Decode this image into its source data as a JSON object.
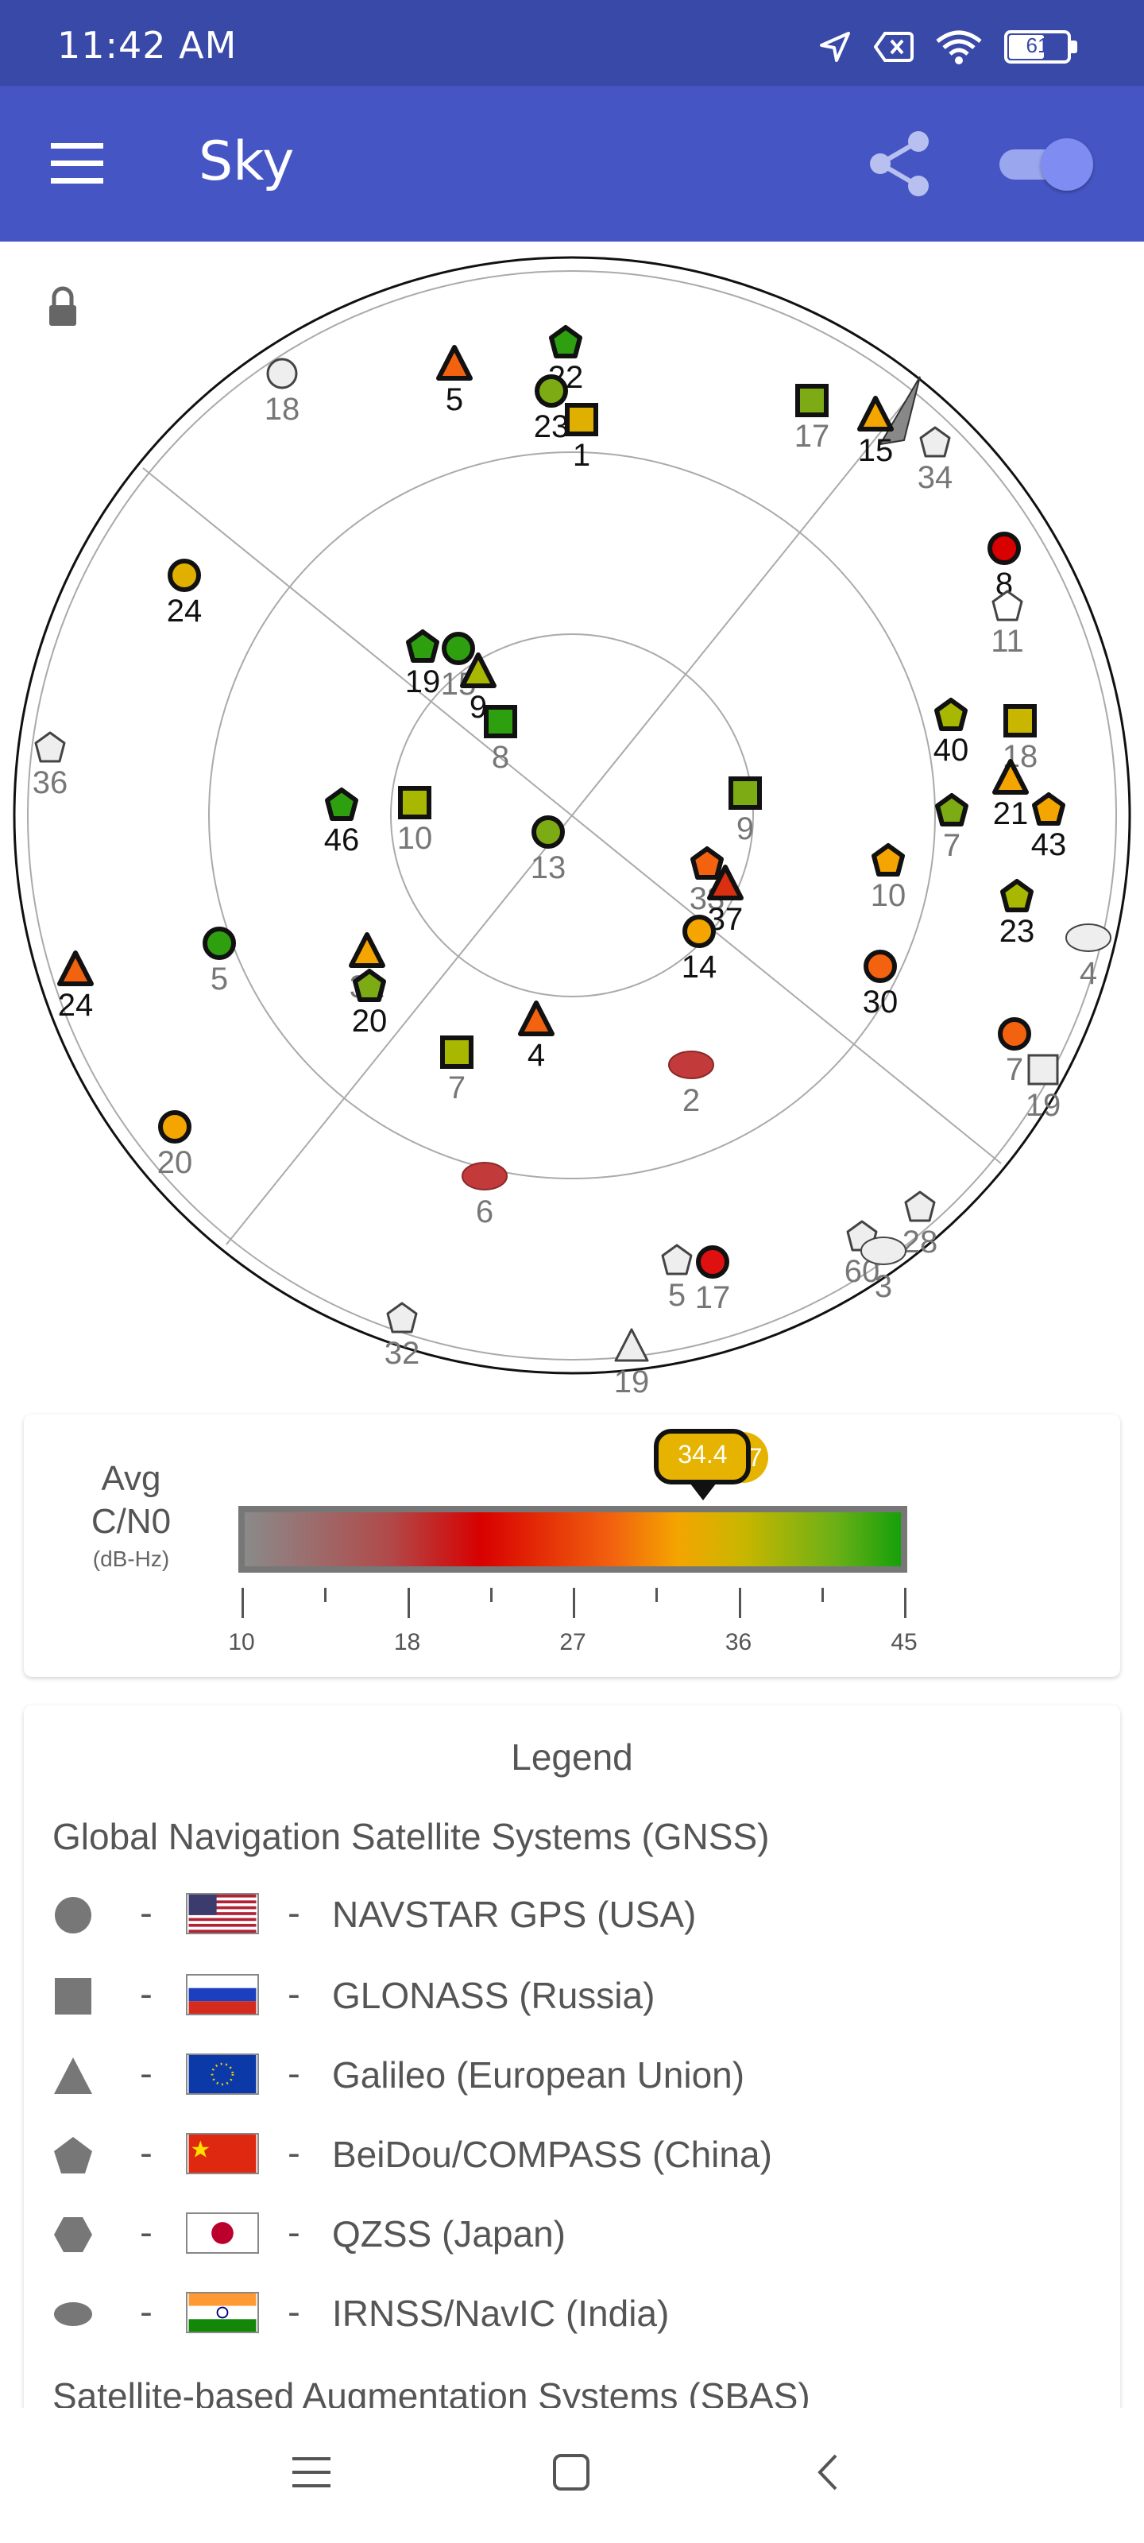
{
  "status_bar": {
    "time": "11:42 AM",
    "battery": "61"
  },
  "app_bar": {
    "title": "Sky",
    "icons": [
      "menu-icon",
      "share-icon",
      "toggle-switch"
    ]
  },
  "sky_plot": {
    "lock_icon": "lock-icon",
    "satellites": [
      {
        "label": "18",
        "shape": "circle",
        "fill": "#eeeeee"
      },
      {
        "label": "5",
        "shape": "triangle",
        "fill": "#f2620f"
      },
      {
        "label": "22",
        "shape": "pentagon",
        "fill": "#2ea010"
      },
      {
        "label": "23",
        "shape": "circle",
        "fill": "#7dab13"
      },
      {
        "label": "1",
        "shape": "square",
        "fill": "#e0b000"
      },
      {
        "label": "17",
        "shape": "square",
        "fill": "#7dab13"
      },
      {
        "label": "15",
        "shape": "triangle",
        "fill": "#f4a500"
      },
      {
        "label": "34",
        "shape": "pentagon",
        "fill": "#eeeeee"
      },
      {
        "label": "8",
        "shape": "circle",
        "fill": "#d80000"
      },
      {
        "label": "11",
        "shape": "pentagon",
        "fill": "#ffffff"
      },
      {
        "label": "24",
        "shape": "circle",
        "fill": "#e0b000"
      },
      {
        "label": "19",
        "shape": "pentagon",
        "fill": "#2ea010"
      },
      {
        "label": "15",
        "shape": "circle",
        "fill": "#2ea010"
      },
      {
        "label": "9",
        "shape": "triangle",
        "fill": "#a8b800"
      },
      {
        "label": "8",
        "shape": "square",
        "fill": "#2ea010"
      },
      {
        "label": "40",
        "shape": "pentagon",
        "fill": "#a8b800"
      },
      {
        "label": "18",
        "shape": "square",
        "fill": "#c9b600"
      },
      {
        "label": "36",
        "shape": "pentagon",
        "fill": "#eeeeee"
      },
      {
        "label": "46",
        "shape": "pentagon",
        "fill": "#2ea010"
      },
      {
        "label": "10",
        "shape": "square",
        "fill": "#a8b800"
      },
      {
        "label": "13",
        "shape": "circle",
        "fill": "#7dab13"
      },
      {
        "label": "9",
        "shape": "square",
        "fill": "#7dab13"
      },
      {
        "label": "21",
        "shape": "triangle",
        "fill": "#f4a500"
      },
      {
        "label": "7",
        "shape": "pentagon",
        "fill": "#7dab13"
      },
      {
        "label": "43",
        "shape": "pentagon",
        "fill": "#f4a500"
      },
      {
        "label": "10",
        "shape": "pentagon",
        "fill": "#f4a500"
      },
      {
        "label": "33",
        "shape": "pentagon",
        "fill": "#f2620f"
      },
      {
        "label": "37",
        "shape": "triangle",
        "fill": "#d83010"
      },
      {
        "label": "14",
        "shape": "circle",
        "fill": "#f4a500"
      },
      {
        "label": "23",
        "shape": "pentagon",
        "fill": "#a8b800"
      },
      {
        "label": "4",
        "shape": "oval",
        "fill": "#eeeeee"
      },
      {
        "label": "24",
        "shape": "triangle",
        "fill": "#f2620f"
      },
      {
        "label": "5",
        "shape": "circle",
        "fill": "#2ea010"
      },
      {
        "label": "31",
        "shape": "triangle",
        "fill": "#f4a500"
      },
      {
        "label": "20",
        "shape": "pentagon",
        "fill": "#7dab13"
      },
      {
        "label": "30",
        "shape": "circle",
        "fill": "#f2620f"
      },
      {
        "label": "7",
        "shape": "circle",
        "fill": "#f2620f"
      },
      {
        "label": "19",
        "shape": "square",
        "fill": "#eeeeee"
      },
      {
        "label": "4",
        "shape": "triangle",
        "fill": "#f2620f"
      },
      {
        "label": "7",
        "shape": "square",
        "fill": "#a8b800"
      },
      {
        "label": "2",
        "shape": "oval",
        "fill": "#c23a3a"
      },
      {
        "label": "20",
        "shape": "circle",
        "fill": "#f4a500"
      },
      {
        "label": "6",
        "shape": "oval",
        "fill": "#c23a3a"
      },
      {
        "label": "5",
        "shape": "pentagon",
        "fill": "#eeeeee"
      },
      {
        "label": "17",
        "shape": "circle",
        "fill": "#e01010"
      },
      {
        "label": "28",
        "shape": "pentagon",
        "fill": "#eeeeee"
      },
      {
        "label": "60",
        "shape": "pentagon",
        "fill": "#eeeeee"
      },
      {
        "label": "3",
        "shape": "oval",
        "fill": "#eeeeee"
      },
      {
        "label": "32",
        "shape": "pentagon",
        "fill": "#eeeeee"
      },
      {
        "label": "19",
        "shape": "triangle",
        "fill": "#eeeeee"
      }
    ]
  },
  "cn0": {
    "title_line1": "Avg",
    "title_line2": "C/N0",
    "units": "(dB-Hz)",
    "avg_in_view": "34.4",
    "avg_in_use": "38.7",
    "avg_in_view_value": 34.4,
    "avg_in_use_value": 38.7,
    "min": 10,
    "max": 45,
    "ticks": [
      "10",
      "18",
      "27",
      "36",
      "45"
    ]
  },
  "legend": {
    "heading": "Legend",
    "gnss_title": "Global Navigation Satellite Systems (GNSS)",
    "items": [
      {
        "shape": "circle-icon",
        "flag": "usa-flag-icon",
        "label": "NAVSTAR GPS (USA)"
      },
      {
        "shape": "square-icon",
        "flag": "russia-flag-icon",
        "label": "GLONASS (Russia)"
      },
      {
        "shape": "triangle-icon",
        "flag": "eu-flag-icon",
        "label": "Galileo (European Union)"
      },
      {
        "shape": "pentagon-icon",
        "flag": "china-flag-icon",
        "label": "BeiDou/COMPASS (China)"
      },
      {
        "shape": "hexagon-icon",
        "flag": "japan-flag-icon",
        "label": "QZSS (Japan)"
      },
      {
        "shape": "oval-icon",
        "flag": "india-flag-icon",
        "label": "IRNSS/NavIC (India)"
      }
    ],
    "sbas_title": "Satellite-based Augmentation Systems (SBAS)"
  },
  "nav_bar": {
    "icons": [
      "recents-icon",
      "home-icon",
      "back-icon"
    ]
  }
}
